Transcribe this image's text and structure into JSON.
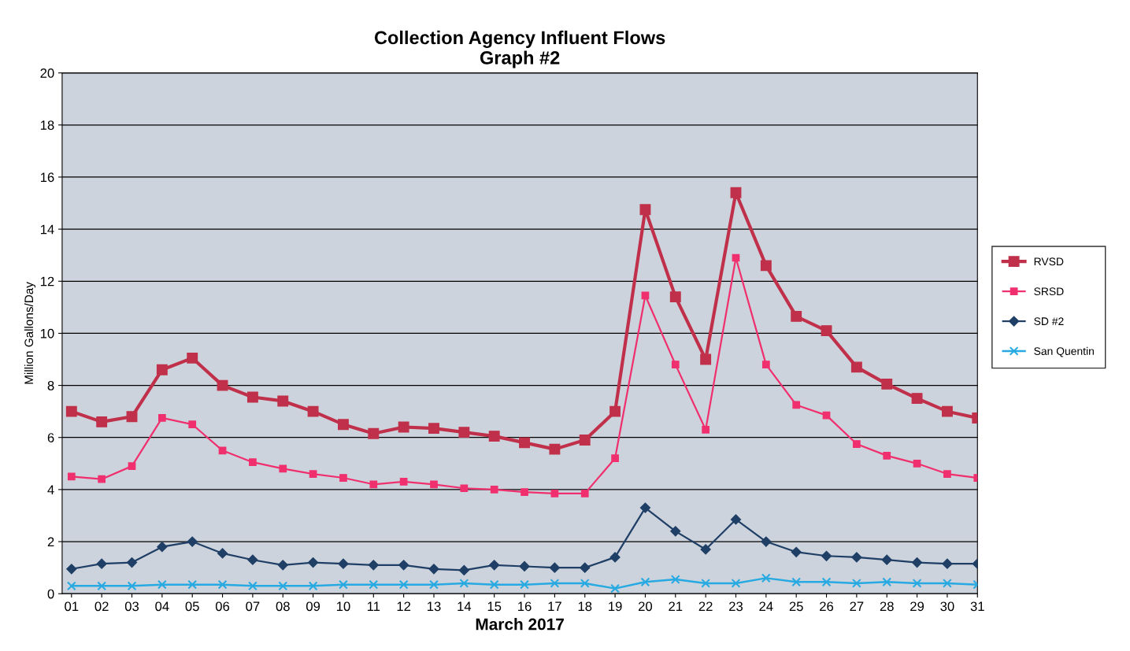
{
  "chart_data": {
    "type": "line",
    "title": "Collection Agency Influent Flows\nGraph #2",
    "xlabel": "March 2017",
    "ylabel": "Million Gallons/Day",
    "categories": [
      "01",
      "02",
      "03",
      "04",
      "05",
      "06",
      "07",
      "08",
      "09",
      "10",
      "11",
      "12",
      "13",
      "14",
      "15",
      "16",
      "17",
      "18",
      "19",
      "20",
      "21",
      "22",
      "23",
      "24",
      "25",
      "26",
      "27",
      "28",
      "29",
      "30",
      "31"
    ],
    "series": [
      {
        "name": "RVSD",
        "color": "#c0304a",
        "marker": "square",
        "values": [
          7.0,
          6.6,
          6.8,
          8.6,
          9.05,
          8.0,
          7.55,
          7.4,
          7.0,
          6.5,
          6.15,
          6.4,
          6.35,
          6.2,
          6.05,
          5.8,
          5.55,
          5.9,
          7.0,
          14.75,
          11.4,
          9.0,
          15.4,
          12.6,
          10.65,
          10.1,
          8.7,
          8.05,
          7.5,
          7.0,
          6.75
        ]
      },
      {
        "name": "SRSD",
        "color": "#f0306e",
        "marker": "square",
        "values": [
          4.5,
          4.4,
          4.9,
          6.75,
          6.5,
          5.5,
          5.05,
          4.8,
          4.6,
          4.45,
          4.2,
          4.3,
          4.2,
          4.05,
          4.0,
          3.9,
          3.85,
          3.85,
          5.2,
          11.45,
          8.8,
          6.3,
          12.9,
          8.8,
          7.25,
          6.85,
          5.75,
          5.3,
          5.0,
          4.6,
          4.45
        ]
      },
      {
        "name": "SD #2",
        "color": "#1f3f66",
        "marker": "diamond",
        "values": [
          0.95,
          1.15,
          1.2,
          1.8,
          2.0,
          1.55,
          1.3,
          1.1,
          1.2,
          1.15,
          1.1,
          1.1,
          0.95,
          0.9,
          1.1,
          1.05,
          1.0,
          1.0,
          1.4,
          3.3,
          2.4,
          1.7,
          2.85,
          2.0,
          1.6,
          1.45,
          1.4,
          1.3,
          1.2,
          1.15,
          1.15
        ]
      },
      {
        "name": "San Quentin",
        "color": "#27a9e1",
        "marker": "cross",
        "values": [
          0.3,
          0.3,
          0.3,
          0.35,
          0.35,
          0.35,
          0.3,
          0.3,
          0.3,
          0.35,
          0.35,
          0.35,
          0.35,
          0.4,
          0.35,
          0.35,
          0.4,
          0.4,
          0.2,
          0.45,
          0.55,
          0.4,
          0.4,
          0.6,
          0.45,
          0.45,
          0.4,
          0.45,
          0.4,
          0.4,
          0.35
        ]
      }
    ],
    "ylim": [
      0,
      20
    ],
    "yticks": [
      0,
      2,
      4,
      6,
      8,
      10,
      12,
      14,
      16,
      18,
      20
    ],
    "grid": "y",
    "legend": "right",
    "line_style": "solid"
  }
}
